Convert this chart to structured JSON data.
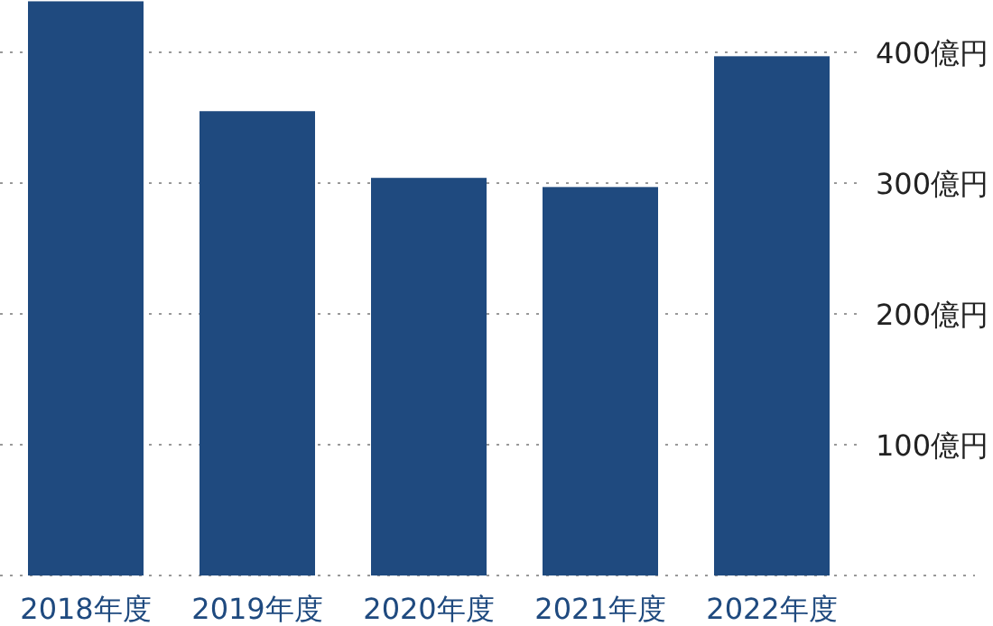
{
  "chart_data": {
    "type": "bar",
    "categories": [
      "2018年度",
      "2019年度",
      "2020年度",
      "2021年度",
      "2022年度"
    ],
    "values": [
      439,
      355,
      304,
      297,
      397
    ],
    "color": "#1f4a7f",
    "ylim": [
      0,
      440
    ],
    "yticks": [
      {
        "value": 0,
        "label": null
      },
      {
        "value": 100,
        "label": "100億円"
      },
      {
        "value": 200,
        "label": "200億円"
      },
      {
        "value": 300,
        "label": "300億円"
      },
      {
        "value": 400,
        "label": "400億円"
      }
    ],
    "grid": "y"
  }
}
